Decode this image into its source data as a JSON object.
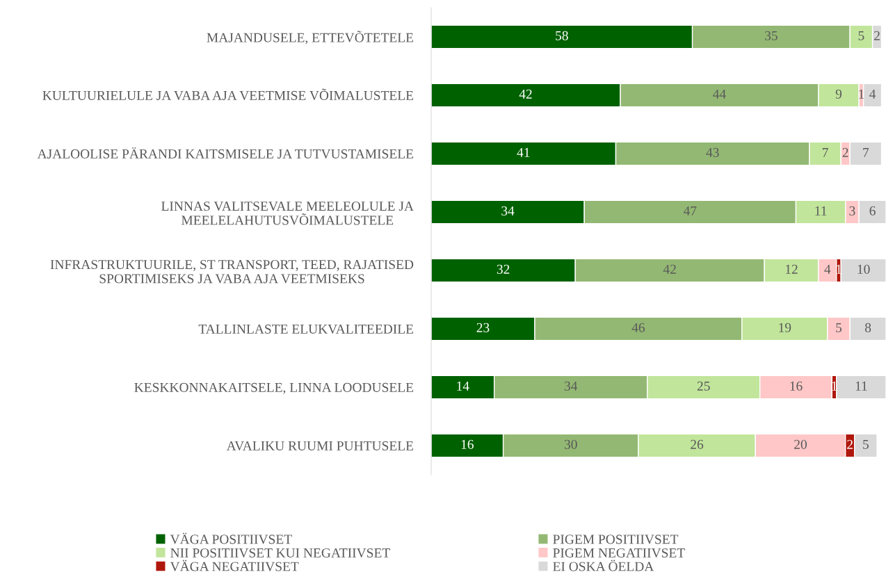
{
  "chart_data": {
    "type": "bar",
    "orientation": "horizontal",
    "stacked": true,
    "data_labels": true,
    "legend": "bottom",
    "grid": false,
    "categories": [
      "MAJANDUSELE, ETTEVÕTETELE",
      "KULTUURIELULE JA VABA AJA VEETMISE VÕIMALUSTELE",
      "AJALOOLISE PÄRANDI KAITSMISELE JA TUTVUSTAMISELE",
      "LINNAS VALITSEVALE MEELEOLULE JA\nMEELELAHUTUSVÕIMALUSTELE",
      "INFRASTRUKTUURILE, ST TRANSPORT, TEED, RAJATISED\nSPORTIMISEKS JA VABA AJA VEETMISEKS",
      "TALLINLASTE ELUKVALITEEDILE",
      "KESKKONNAKAITSELE, LINNA LOODUSELE",
      "AVALIKU RUUMI PUHTUSELE"
    ],
    "series": [
      {
        "name": "VÄGA POSITIIVSET",
        "color": "#006100",
        "values": [
          58,
          42,
          41,
          34,
          32,
          23,
          14,
          16
        ]
      },
      {
        "name": "PIGEM POSITIIVSET",
        "color": "#93b873",
        "values": [
          35,
          44,
          43,
          47,
          42,
          46,
          34,
          30
        ]
      },
      {
        "name": "NII POSITIIVSET KUI NEGATIIVSET",
        "color": "#c1e59b",
        "values": [
          5,
          9,
          7,
          11,
          12,
          19,
          25,
          26
        ]
      },
      {
        "name": "PIGEM NEGATIIVSET",
        "color": "#ffc7c7",
        "values": [
          null,
          1,
          2,
          3,
          4,
          5,
          16,
          20
        ]
      },
      {
        "name": "VÄGA NEGATIIVSET",
        "color": "#b0170c",
        "values": [
          null,
          null,
          null,
          null,
          1,
          null,
          1,
          2
        ]
      },
      {
        "name": "EI OSKA ÖELDA",
        "color": "#d9d9d9",
        "values": [
          2,
          4,
          7,
          6,
          10,
          8,
          11,
          5
        ]
      }
    ]
  }
}
